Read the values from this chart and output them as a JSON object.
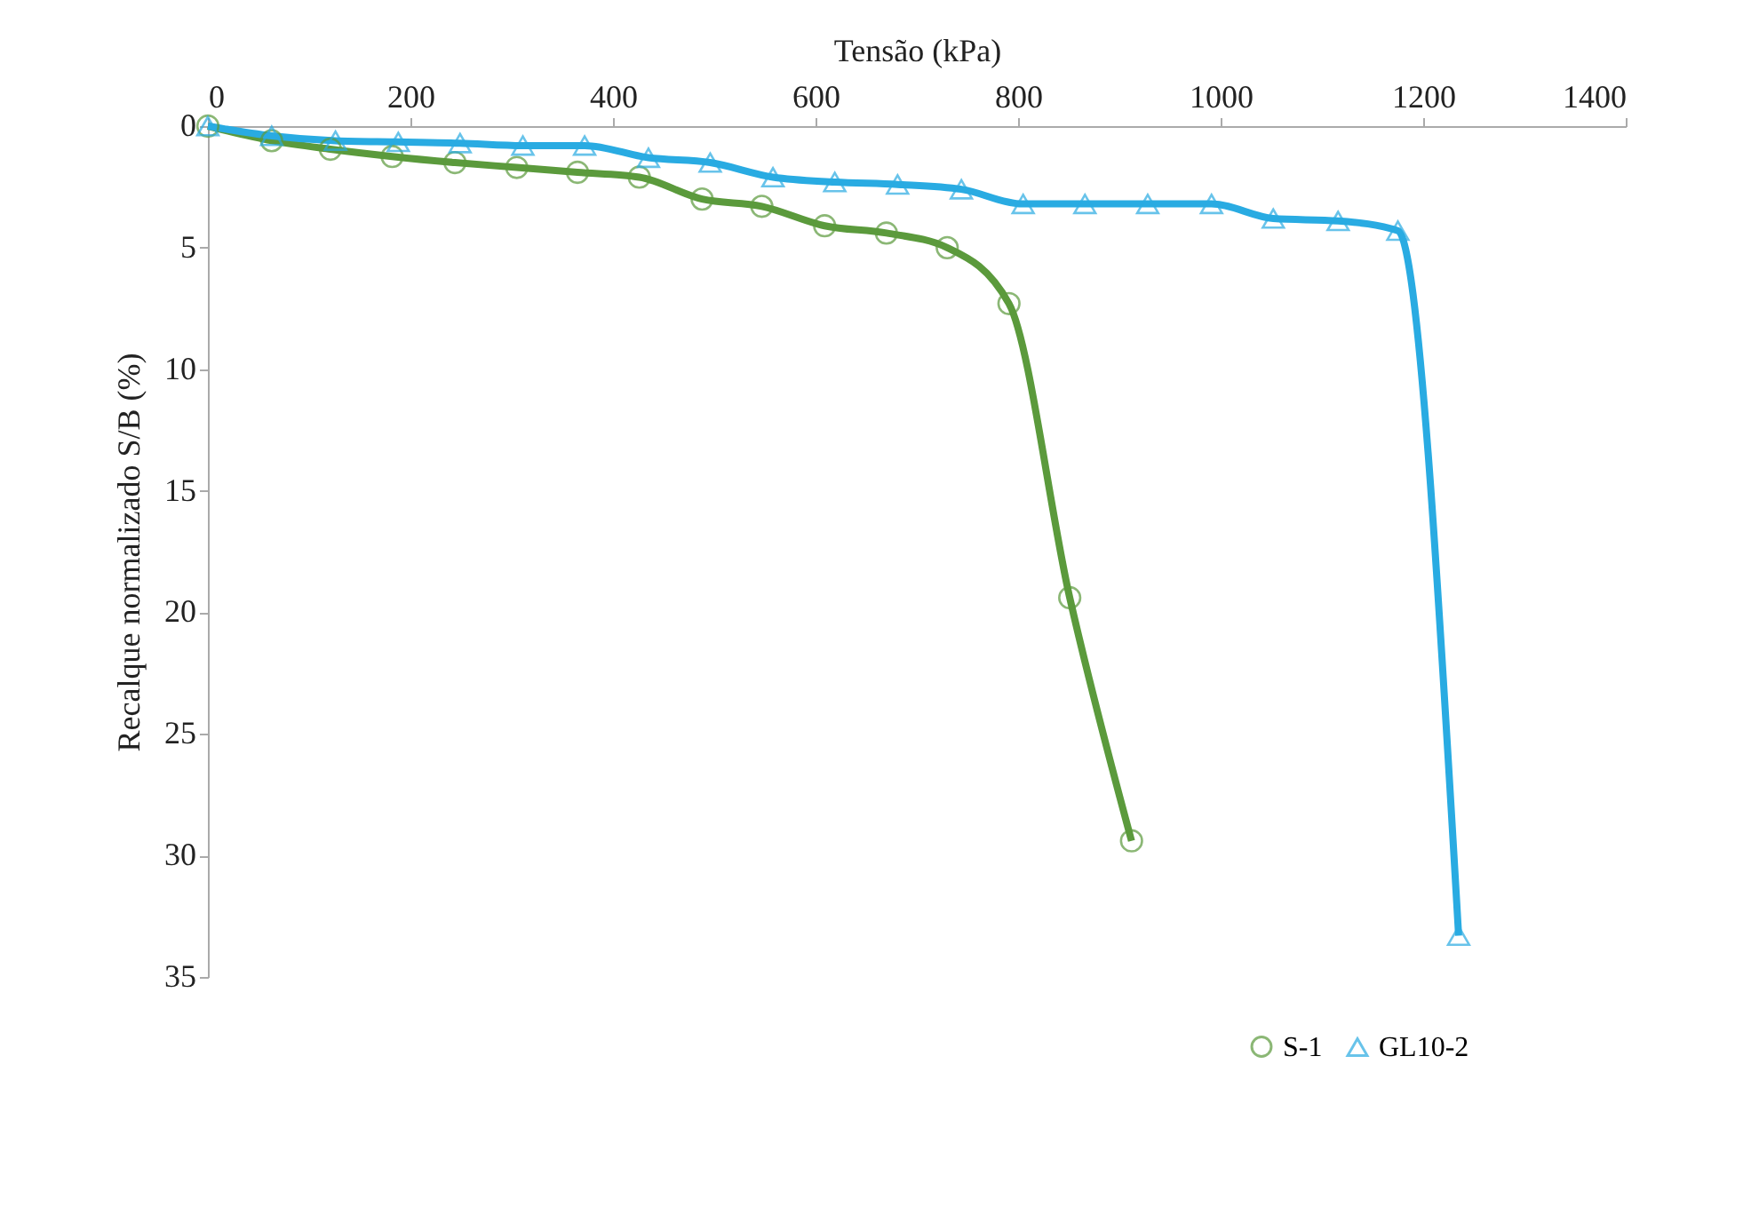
{
  "chart_data": {
    "type": "line",
    "xlabel": "Tensão (kPa)",
    "ylabel": "Recalque normalizado S/B (%)",
    "xlim": [
      0,
      1400
    ],
    "xticks": [
      0,
      200,
      400,
      600,
      800,
      1000,
      1200,
      1400
    ],
    "ylim": [
      35,
      0
    ],
    "yticks": [
      0,
      5,
      10,
      15,
      20,
      25,
      30,
      35
    ],
    "grid": false,
    "legend": "bottom right",
    "line_style": "solid",
    "series": [
      {
        "name": "S-1",
        "color": "#5b9a3c",
        "marker": "circle",
        "x": [
          0,
          63,
          121,
          182,
          244,
          305,
          365,
          426,
          488,
          547,
          609,
          670,
          730,
          791,
          851,
          912
        ],
        "values": [
          0,
          0.6,
          0.95,
          1.25,
          1.5,
          1.7,
          1.9,
          2.1,
          3.0,
          3.3,
          4.1,
          4.4,
          5.0,
          7.3,
          19.4,
          29.4
        ]
      },
      {
        "name": "GL10-2",
        "color": "#29abe2",
        "marker": "triangle",
        "x": [
          0,
          63,
          126,
          188,
          249,
          311,
          372,
          435,
          496,
          558,
          619,
          681,
          744,
          805,
          866,
          928,
          991,
          1052,
          1116,
          1175,
          1235
        ],
        "values": [
          0,
          0.4,
          0.6,
          0.65,
          0.7,
          0.8,
          0.8,
          1.3,
          1.5,
          2.1,
          2.3,
          2.4,
          2.6,
          3.2,
          3.2,
          3.2,
          3.2,
          3.8,
          3.9,
          4.3,
          33.3
        ]
      }
    ]
  }
}
